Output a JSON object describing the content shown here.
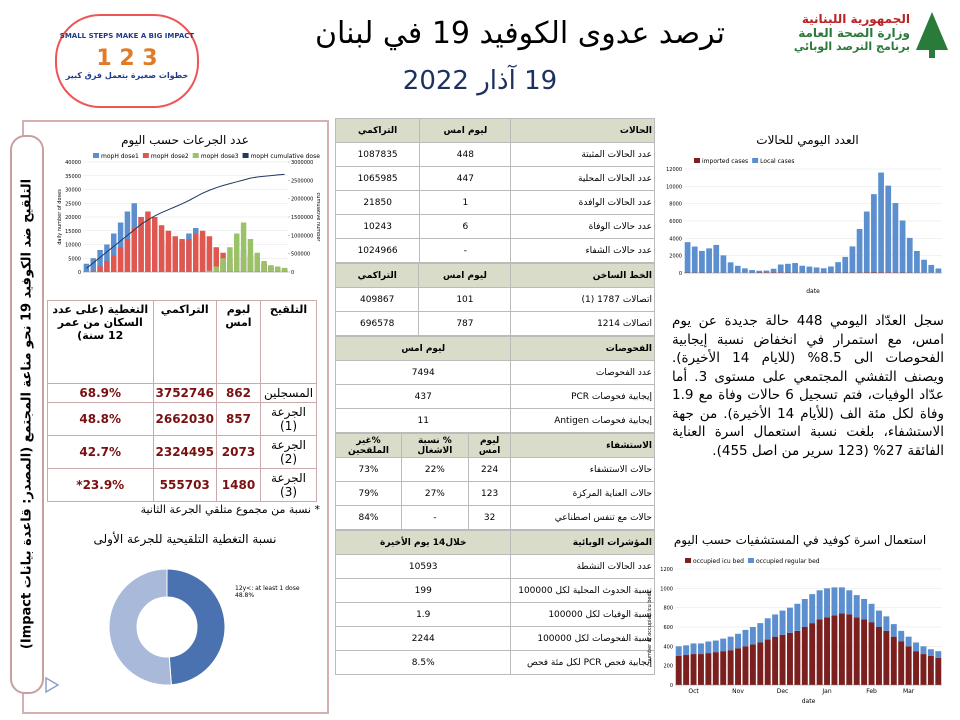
{
  "header": {
    "title": "ترصد عدوى الكوفيد 19 في لبنان",
    "date": "19 آذار 2022",
    "ministry": [
      "الجمهورية اللبنانية",
      "وزارة الصحة العامة",
      "برنامج الترصد الوبائي"
    ],
    "campaign": [
      "SMALL STEPS MAKE A BIG IMPACT",
      "خطوات صغيرة بتعمل فرق كبير"
    ]
  },
  "side_label": "التلقيح ضد الكوفيد 19 نحو مناعة المجتمع (المصدر: قاعدة بيانات Impact)",
  "doses_chart": {
    "type": "bar",
    "stacked": false,
    "title": "عدد الجرعات حسب اليوم",
    "ylabel": "daily number of doses",
    "y2label": "cumulative number",
    "ylim": [
      0,
      40000
    ],
    "yticks": [
      0,
      5000,
      10000,
      15000,
      20000,
      25000,
      30000,
      35000,
      40000
    ],
    "y2lim": [
      0,
      3000000
    ],
    "y2ticks": [
      0,
      500000,
      1000000,
      1500000,
      2000000,
      2500000,
      3000000
    ],
    "series": [
      {
        "name": "mopH dose1",
        "color": "#5b8fd0",
        "values": [
          3000,
          5000,
          8000,
          10000,
          14000,
          18000,
          22000,
          25000,
          20000,
          17000,
          15000,
          12000,
          10000,
          9000,
          11000,
          14000,
          16000,
          13000,
          9000,
          6000,
          4000,
          3000,
          5000,
          8000,
          6000,
          4000,
          3000,
          2000,
          1500,
          1000
        ]
      },
      {
        "name": "mopH dose2",
        "color": "#e0574f",
        "values": [
          0,
          500,
          2000,
          4000,
          6000,
          9000,
          12000,
          16000,
          20000,
          22000,
          20000,
          17000,
          15000,
          13000,
          12000,
          12000,
          14000,
          15000,
          13000,
          9000,
          7000,
          5000,
          4000,
          5000,
          6000,
          5000,
          3000,
          2000,
          1500,
          1200
        ]
      },
      {
        "name": "mopH dose3",
        "color": "#9bc268",
        "values": [
          0,
          0,
          0,
          0,
          0,
          0,
          0,
          0,
          0,
          0,
          0,
          0,
          0,
          0,
          0,
          0,
          0,
          0,
          500,
          2000,
          5000,
          9000,
          14000,
          18000,
          12000,
          7000,
          4000,
          2500,
          2000,
          1500
        ]
      },
      {
        "name": "mopH cumulative dose1",
        "color": "#1f3864",
        "axis": "y2",
        "values": [
          100000,
          250000,
          400000,
          550000,
          700000,
          850000,
          1000000,
          1150000,
          1300000,
          1420000,
          1530000,
          1620000,
          1700000,
          1780000,
          1860000,
          1950000,
          2050000,
          2150000,
          2230000,
          2300000,
          2360000,
          2410000,
          2460000,
          2510000,
          2560000,
          2590000,
          2610000,
          2630000,
          2650000,
          2662030
        ]
      }
    ]
  },
  "vaccine_table": {
    "header": [
      "التلقيح",
      "لبوم امس",
      "التراكمي",
      "التغطية (على عدد السكان من عمر 12 سنة)"
    ],
    "rows": [
      [
        "المسجلين",
        "862",
        "3752746",
        "68.9%"
      ],
      [
        "الجرعة (1)",
        "857",
        "2662030",
        "48.8%"
      ],
      [
        "الجرعة (2)",
        "2073",
        "2324495",
        "42.7%"
      ],
      [
        "الجرعة (3)",
        "1480",
        "555703",
        "23.9%*"
      ]
    ],
    "note": "* نسبة من مجموع متلقي الجرعة الثانية"
  },
  "coverage_chart": {
    "type": "pie",
    "title": "نسبة التغطية التلقيحية للجرعة الأولى",
    "values": [
      48.8,
      51.2
    ],
    "colors": [
      "#4a72b0",
      "#a9b9d9"
    ],
    "annotation": "12y<: at least 1 dose 48.8%"
  },
  "main_table": [
    {
      "header": [
        "الحالات",
        "ليوم امس",
        "التراكمي"
      ],
      "rows": [
        [
          "عدد الحالات المثبتة",
          "448",
          "1087835"
        ],
        [
          "عدد الحالات المحلية",
          "447",
          "1065985"
        ],
        [
          "عدد الحالات الوافدة",
          "1",
          "21850"
        ],
        [
          "عدد حالات الوفاة",
          "6",
          "10243"
        ],
        [
          "عدد حالات الشفاء",
          "-",
          "1024966"
        ]
      ]
    },
    {
      "header": [
        "الخط الساخن",
        "ليوم امس",
        "التراكمي"
      ],
      "rows": [
        [
          "اتصالات 1787 (1)",
          "101",
          "409867"
        ],
        [
          "اتصالات 1214",
          "787",
          "696578"
        ]
      ]
    },
    {
      "header": [
        "الفحوصات",
        "ليوم امس"
      ],
      "rows": [
        [
          "عدد الفحوصات",
          "7494"
        ],
        [
          "إيجابية فحوصات PCR",
          "437"
        ],
        [
          "إيجابية فحوصات Antigen",
          "11"
        ]
      ]
    },
    {
      "header": [
        "الاستشفاء",
        "ليوم امس",
        "% نسبة الاشغال",
        "%غير الملقحين"
      ],
      "rows": [
        [
          "حالات الاستشفاء",
          "224",
          "22%",
          "73%"
        ],
        [
          "حالات العناية المركزة",
          "123",
          "27%",
          "79%"
        ],
        [
          "حالات مع تنفس اصطناعي",
          "32",
          "-",
          "84%"
        ]
      ]
    },
    {
      "header": [
        "المؤشرات الوبائية",
        "خلال14 يوم الأخيرة"
      ],
      "rows": [
        [
          "عدد الحالات النشطة",
          "10593"
        ],
        [
          "نسبة الحدوث المحلية لكل 100000",
          "199"
        ],
        [
          "نسبة الوفيات لكل 100000",
          "1.9"
        ],
        [
          "نسبة الفحوصات لكل 100000",
          "2244"
        ],
        [
          "إيجابية فحص PCR لكل مئة فحص",
          "8.5%"
        ]
      ]
    }
  ],
  "cases_chart": {
    "type": "bar",
    "stacked": true,
    "title": "العدد اليومي للحالات",
    "xlabel": "date",
    "ylim": [
      0,
      12000
    ],
    "yticks": [
      0,
      2000,
      4000,
      6000,
      8000,
      10000,
      12000
    ],
    "series": [
      {
        "name": "imported cases",
        "color": "#7b1f1f",
        "values": [
          60,
          50,
          50,
          40,
          40,
          40,
          30,
          30,
          30,
          40,
          60,
          80,
          90,
          80,
          60,
          50,
          40,
          40,
          40,
          50,
          50,
          50,
          60,
          70,
          80,
          90,
          100,
          90,
          80,
          70,
          60,
          50,
          40,
          30,
          30,
          20
        ]
      },
      {
        "name": "Local cases",
        "color": "#5b8fd0",
        "values": [
          3500,
          3000,
          2500,
          2800,
          3200,
          2000,
          1200,
          800,
          500,
          300,
          200,
          200,
          400,
          900,
          1000,
          1100,
          800,
          700,
          600,
          500,
          700,
          1200,
          1800,
          3000,
          5000,
          7000,
          9000,
          11500,
          10000,
          8000,
          6000,
          4000,
          2500,
          1500,
          900,
          500
        ]
      }
    ]
  },
  "summary": "سجل العدّاد اليومي 448 حالة جديدة عن يوم امس، مع استمرار في انخفاض نسبة إيجابية الفحوصات الى 8.5% (للايام 14 الأخيرة). ويصنف التفشي المجتمعي على مستوى 3. أما عدّاد الوفيات، فتم تسجيل 6 حالات وفاة مع 1.9 وفاة لكل مئة الف (للأيام 14 الأخيرة). من جهة الاستشفاء، بلغت نسبة استعمال اسرة العناية الفائقة 27% (123 سرير من اصل 455).",
  "beds_chart": {
    "type": "bar",
    "stacked": true,
    "title": "استعمال اسرة كوفيد في المستشفيات حسب اليوم",
    "xlabel": "date",
    "ylabel": "number of occupied icu beds",
    "ylim": [
      0,
      1200
    ],
    "yticks": [
      0,
      200,
      400,
      600,
      800,
      1000,
      1200
    ],
    "categories": [
      null,
      null,
      "Oct",
      null,
      null,
      null,
      null,
      null,
      "Nov",
      null,
      null,
      null,
      null,
      null,
      "Dec",
      null,
      null,
      null,
      null,
      null,
      "Jan",
      null,
      null,
      null,
      null,
      null,
      "Feb",
      null,
      null,
      null,
      null,
      "Mar",
      null,
      null,
      null,
      null
    ],
    "series": [
      {
        "name": "occupied icu bed",
        "color": "#7b1f1f",
        "values": [
          300,
          310,
          320,
          320,
          330,
          340,
          350,
          360,
          380,
          400,
          420,
          440,
          470,
          500,
          520,
          540,
          560,
          600,
          640,
          680,
          700,
          720,
          740,
          730,
          700,
          680,
          650,
          600,
          560,
          500,
          450,
          400,
          350,
          320,
          300,
          280
        ]
      },
      {
        "name": "occupied regular bed",
        "color": "#5b8fd0",
        "values": [
          100,
          100,
          110,
          110,
          120,
          120,
          130,
          140,
          150,
          170,
          180,
          200,
          220,
          230,
          250,
          260,
          280,
          290,
          300,
          300,
          300,
          290,
          270,
          250,
          230,
          210,
          190,
          170,
          150,
          130,
          110,
          100,
          90,
          80,
          70,
          70
        ]
      }
    ]
  }
}
